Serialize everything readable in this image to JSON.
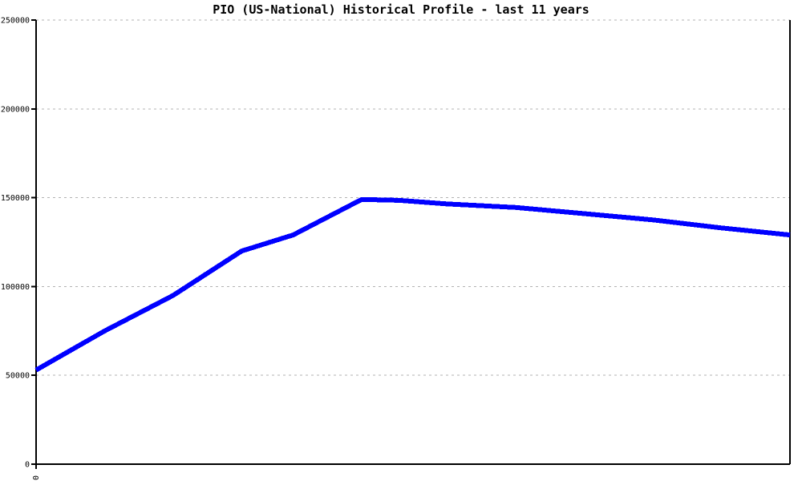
{
  "chart_data": {
    "type": "line",
    "title": "PIO (US-National) Historical Profile - last 11 years",
    "xlabel": "",
    "ylabel": "",
    "legend": "none",
    "grid": {
      "horizontal": true,
      "style": "dotted",
      "color": "#b3b3b3"
    },
    "axis_color": "#000000",
    "background_color": "#ffffff",
    "x_axis": {
      "range": [
        0,
        11
      ],
      "ticks": [
        0
      ],
      "tick_labels": [
        "0"
      ]
    },
    "y_axis": {
      "range": [
        0,
        250000
      ],
      "ticks": [
        0,
        50000,
        100000,
        150000,
        200000,
        250000
      ],
      "tick_labels": [
        "0",
        "50000",
        "100000",
        "150000",
        "200000",
        "250000"
      ]
    },
    "series": [
      {
        "name": "PIO (US-National)",
        "color": "#0000ff",
        "stroke_width": 6,
        "points": [
          {
            "x": 0,
            "y": 53000
          },
          {
            "x": 1,
            "y": 75000
          },
          {
            "x": 2,
            "y": 95000
          },
          {
            "x": 3,
            "y": 120000
          },
          {
            "x": 3.75,
            "y": 129000
          },
          {
            "x": 4.75,
            "y": 149000
          },
          {
            "x": 5.3,
            "y": 148500
          },
          {
            "x": 6,
            "y": 146500
          },
          {
            "x": 7,
            "y": 144500
          },
          {
            "x": 8,
            "y": 141000
          },
          {
            "x": 9,
            "y": 137500
          },
          {
            "x": 10,
            "y": 133000
          },
          {
            "x": 11,
            "y": 129000
          }
        ]
      }
    ]
  }
}
